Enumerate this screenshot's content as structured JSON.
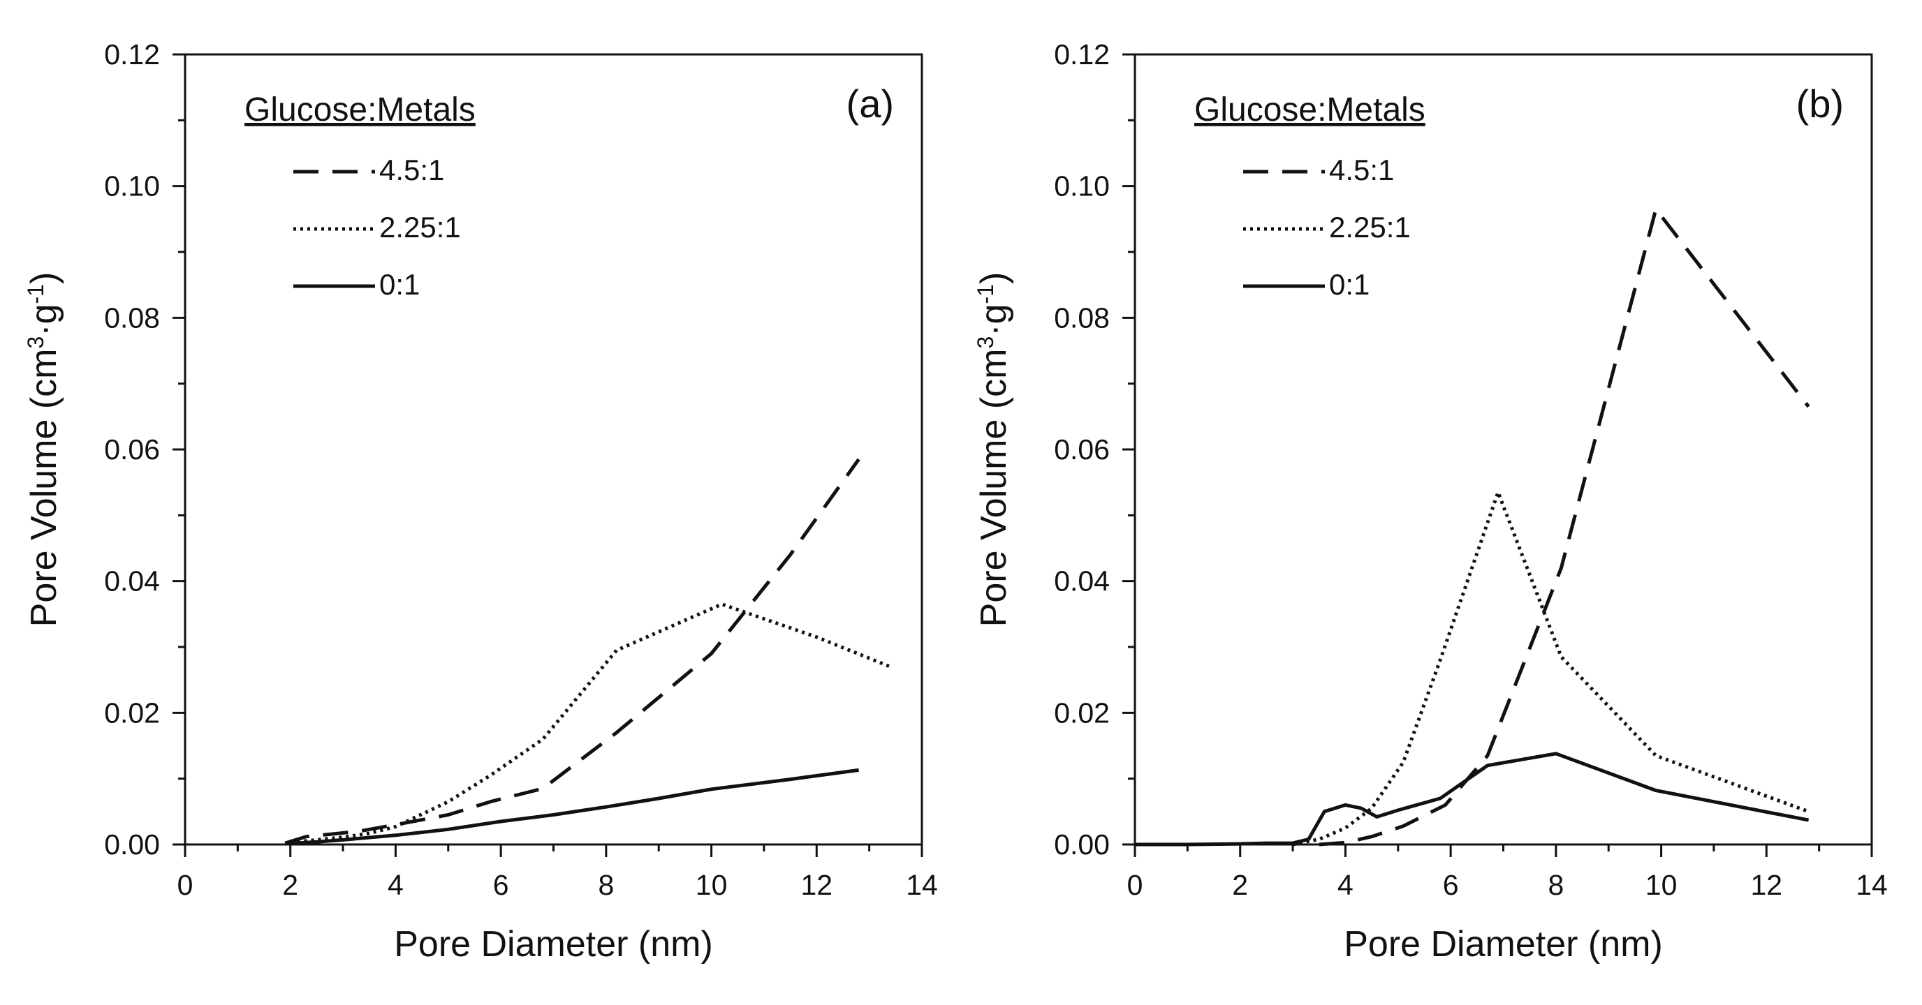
{
  "figure": {
    "panels": [
      "a",
      "b"
    ]
  },
  "chart_data": [
    {
      "type": "line",
      "panel_label": "(a)",
      "xlabel": "Pore Diameter (nm)",
      "ylabel_main": "Pore Volume (cm",
      "ylabel_sup1": "3",
      "ylabel_mid": "·g",
      "ylabel_sup2": "-1",
      "ylabel_end": ")",
      "xlim": [
        0,
        14
      ],
      "ylim": [
        0,
        0.12
      ],
      "x_ticks": [
        0,
        2,
        4,
        6,
        8,
        10,
        12,
        14
      ],
      "x_tick_labels": [
        "0",
        "2",
        "4",
        "6",
        "8",
        "10",
        "12",
        "14"
      ],
      "y_ticks": [
        0,
        0.02,
        0.04,
        0.06,
        0.08,
        0.1,
        0.12
      ],
      "y_tick_labels": [
        "0.00",
        "0.02",
        "0.04",
        "0.06",
        "0.08",
        "0.10",
        "0.12"
      ],
      "grid": false,
      "legend": {
        "title": "Glucose:Metals",
        "position": "top-left",
        "entries": [
          "4.5:1",
          "2.25:1",
          "0:1"
        ]
      },
      "series": [
        {
          "name": "4.5:1",
          "style": "dashed",
          "x": [
            1.9,
            2.3,
            2.7,
            3.3,
            4.0,
            5.0,
            5.8,
            6.8,
            8.2,
            10.0,
            11.5,
            12.8
          ],
          "y": [
            0.0002,
            0.0012,
            0.0015,
            0.002,
            0.003,
            0.0045,
            0.0065,
            0.0085,
            0.017,
            0.029,
            0.044,
            0.0585
          ]
        },
        {
          "name": "2.25:1",
          "style": "dotted",
          "x": [
            2.0,
            2.5,
            3.0,
            3.5,
            4.0,
            5.0,
            5.8,
            6.8,
            8.2,
            10.2,
            12.0,
            13.4
          ],
          "y": [
            0.0003,
            0.0007,
            0.0011,
            0.0017,
            0.0027,
            0.0065,
            0.0105,
            0.016,
            0.0295,
            0.0365,
            0.0315,
            0.027
          ]
        },
        {
          "name": "0:1",
          "style": "solid",
          "x": [
            1.9,
            2.5,
            3.0,
            4.0,
            5.0,
            6.0,
            7.0,
            8.0,
            9.0,
            10.0,
            11.5,
            12.8
          ],
          "y": [
            0.0001,
            0.0004,
            0.0007,
            0.0014,
            0.0023,
            0.0035,
            0.0045,
            0.0057,
            0.007,
            0.0084,
            0.0099,
            0.0113
          ]
        }
      ]
    },
    {
      "type": "line",
      "panel_label": "(b)",
      "xlabel": "Pore Diameter (nm)",
      "ylabel_main": "Pore Volume (cm",
      "ylabel_sup1": "3",
      "ylabel_mid": "·g",
      "ylabel_sup2": "-1",
      "ylabel_end": ")",
      "xlim": [
        0,
        14
      ],
      "ylim": [
        0,
        0.12
      ],
      "x_ticks": [
        0,
        2,
        4,
        6,
        8,
        10,
        12,
        14
      ],
      "x_tick_labels": [
        "0",
        "2",
        "4",
        "6",
        "8",
        "10",
        "12",
        "14"
      ],
      "y_ticks": [
        0,
        0.02,
        0.04,
        0.06,
        0.08,
        0.1,
        0.12
      ],
      "y_tick_labels": [
        "0.00",
        "0.02",
        "0.04",
        "0.06",
        "0.08",
        "0.10",
        "0.12"
      ],
      "grid": false,
      "legend": {
        "title": "Glucose:Metals",
        "position": "top-left",
        "entries": [
          "4.5:1",
          "2.25:1",
          "0:1"
        ]
      },
      "series": [
        {
          "name": "4.5:1",
          "style": "dashed",
          "x": [
            3.5,
            4.0,
            4.5,
            5.1,
            5.9,
            6.7,
            8.1,
            9.9,
            12.8
          ],
          "y": [
            0.0,
            0.0003,
            0.0012,
            0.0028,
            0.006,
            0.0135,
            0.042,
            0.0965,
            0.0665
          ]
        },
        {
          "name": "2.25:1",
          "style": "dotted",
          "x": [
            3.0,
            3.5,
            4.0,
            4.5,
            5.1,
            5.8,
            6.9,
            8.1,
            9.9,
            12.8
          ],
          "y": [
            0.0,
            0.0008,
            0.0025,
            0.0055,
            0.0125,
            0.028,
            0.0535,
            0.0285,
            0.0135,
            0.005
          ]
        },
        {
          "name": "0:1",
          "style": "solid",
          "x": [
            0.0,
            1.0,
            2.0,
            2.5,
            3.0,
            3.3,
            3.6,
            4.0,
            4.3,
            4.6,
            5.0,
            5.8,
            6.7,
            8.0,
            9.9,
            12.8
          ],
          "y": [
            0.0,
            0.0,
            0.0001,
            0.0002,
            0.0002,
            0.0008,
            0.005,
            0.006,
            0.0055,
            0.0042,
            0.0052,
            0.007,
            0.012,
            0.0138,
            0.0082,
            0.0037
          ]
        }
      ]
    }
  ]
}
